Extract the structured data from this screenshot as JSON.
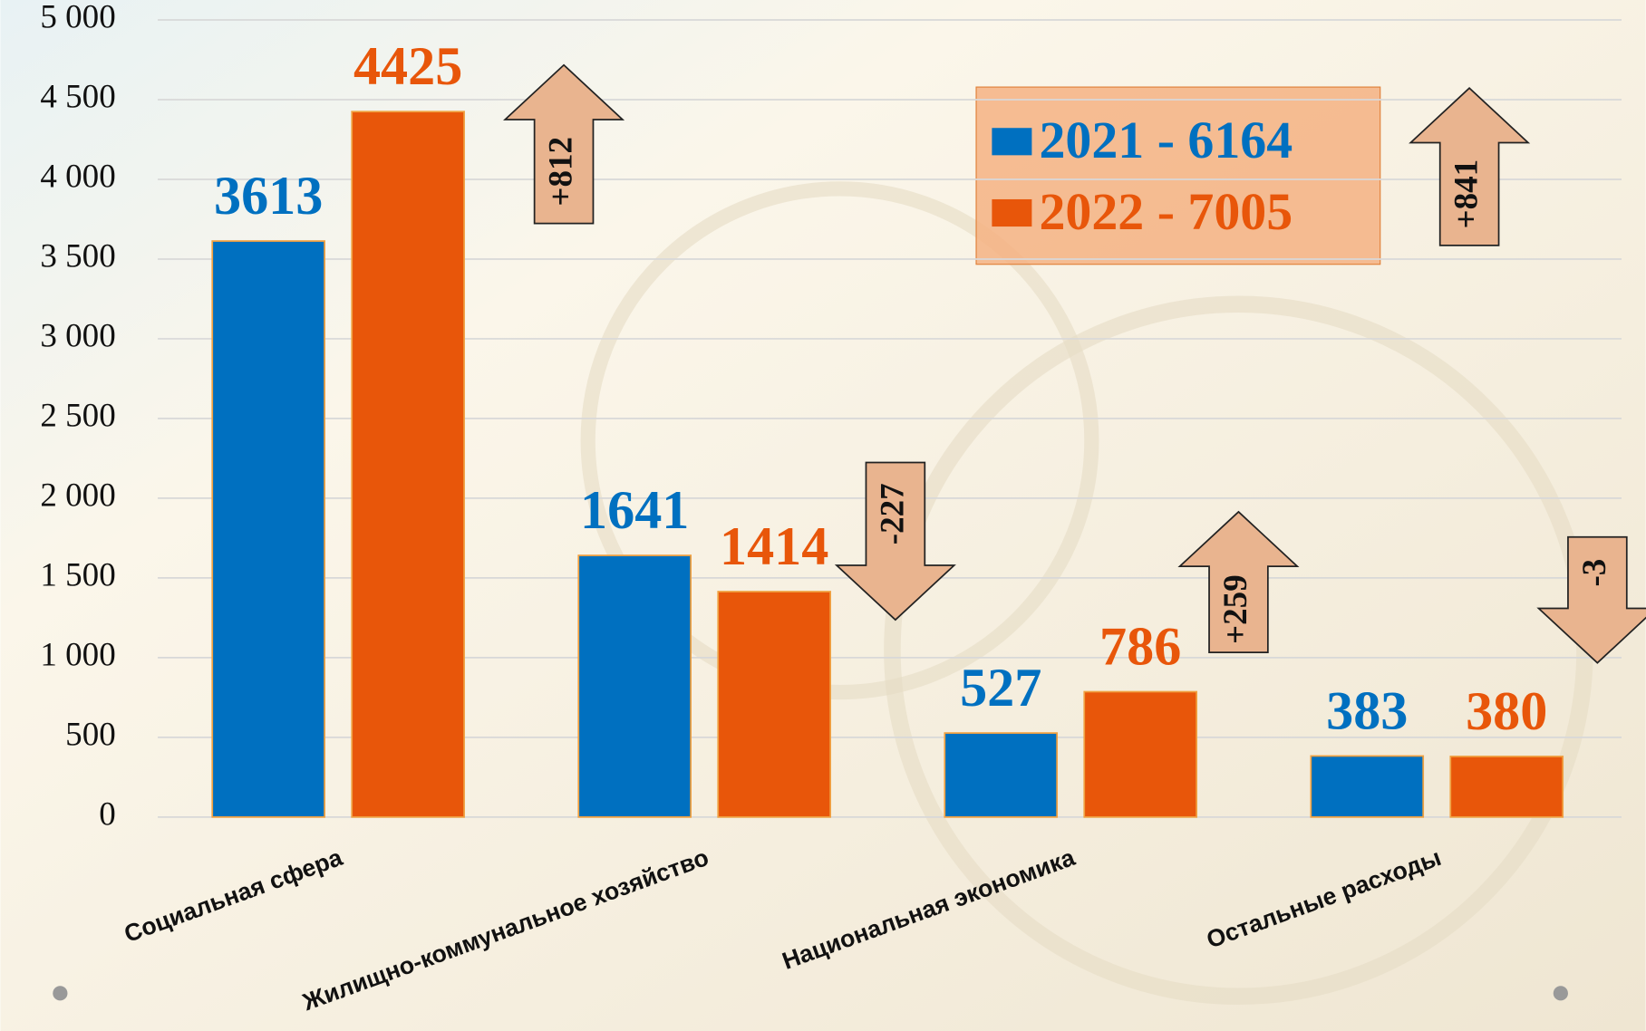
{
  "chart_data": {
    "type": "bar",
    "categories": [
      "Социальная сфера",
      "Жилищно-коммунальное хозяйство",
      "Национальная экономика",
      "Остальные расходы"
    ],
    "series": [
      {
        "name": "2021 - 6164",
        "color": "#0070c0",
        "values": [
          3613,
          1641,
          527,
          383
        ]
      },
      {
        "name": "2022 - 7005",
        "color": "#e8560a",
        "values": [
          4425,
          1414,
          786,
          380
        ]
      }
    ],
    "ylim": [
      0,
      5000
    ],
    "yticks": [
      0,
      500,
      {
        "value": 1000,
        "label": "1 000"
      },
      {
        "value": 1500,
        "label": "1 500"
      },
      {
        "value": 2000,
        "label": "2 000"
      },
      {
        "value": 2500,
        "label": "2 500"
      },
      {
        "value": 3000,
        "label": "3 000"
      },
      {
        "value": 3500,
        "label": "3 500"
      },
      {
        "value": 4000,
        "label": "4 000"
      },
      {
        "value": 4500,
        "label": "4 500"
      },
      {
        "value": 5000,
        "label": "5 000"
      }
    ],
    "grid": true,
    "annotations": [
      "+812",
      "-227",
      "+259",
      "-3",
      "+841"
    ]
  }
}
